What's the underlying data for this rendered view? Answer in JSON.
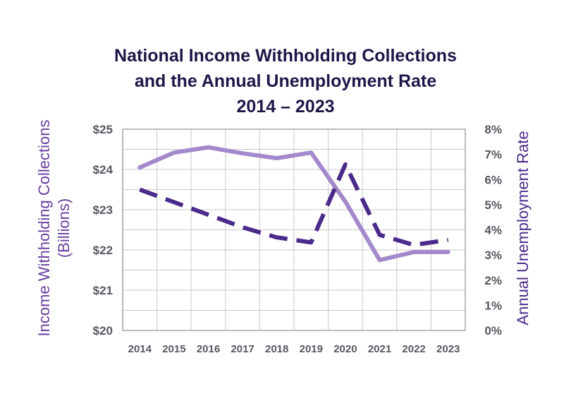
{
  "chart_data": {
    "type": "line",
    "title": [
      "National Income Withholding Collections",
      "and the Annual Unemployment Rate",
      "2014 – 2023"
    ],
    "categories": [
      "2014",
      "2015",
      "2016",
      "2017",
      "2018",
      "2019",
      "2020",
      "2021",
      "2022",
      "2023"
    ],
    "ylabel_left": [
      "Income Withholding Collections",
      "(Billions)"
    ],
    "ylabel_right": "Annual Unemployment Rate",
    "y_left_ticks": [
      "$20",
      "$21",
      "$22",
      "$23",
      "$24",
      "$25"
    ],
    "y_right_ticks": [
      "0%",
      "1%",
      "2%",
      "3%",
      "4%",
      "5%",
      "6%",
      "7%",
      "8%"
    ],
    "ylim_left": [
      20,
      25
    ],
    "ylim_right": [
      0,
      8
    ],
    "grid": true,
    "series": [
      {
        "name": "Income Withholding Collections (Billions)",
        "axis": "left",
        "style": "solid",
        "color": "#a389cc",
        "values": [
          24.05,
          24.42,
          24.55,
          24.4,
          24.28,
          24.42,
          23.2,
          21.75,
          21.95,
          21.95
        ]
      },
      {
        "name": "Annual Unemployment Rate",
        "axis": "right",
        "style": "dashed",
        "color": "#4a2a8a",
        "values": [
          5.6,
          5.1,
          4.6,
          4.1,
          3.7,
          3.5,
          6.6,
          3.8,
          3.4,
          3.6
        ]
      }
    ]
  },
  "colors": {
    "title": "#1f1648",
    "left_axis_label": "#6a3fa0",
    "right_axis_label": "#4a2a8a",
    "tick_text": "#58565f"
  }
}
